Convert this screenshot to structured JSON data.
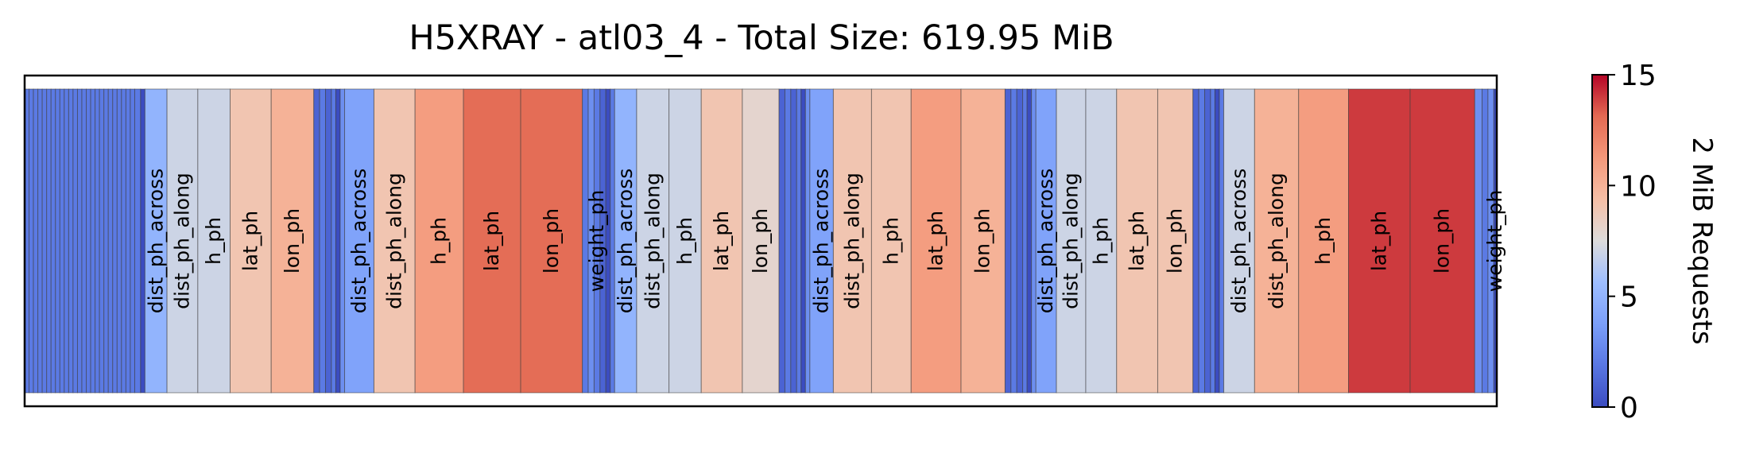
{
  "chart_data": {
    "type": "heatmap",
    "title": "H5XRAY - atl03_4 - Total Size: 619.95 MiB",
    "colorbar": {
      "label": "2 MiB Requests",
      "range": [
        0,
        15
      ],
      "ticks": [
        "0",
        "5",
        "10",
        "15"
      ],
      "colormap": "coolwarm",
      "placement": "right"
    },
    "segments": [
      {
        "label": "",
        "size": 0.003,
        "value": 2
      },
      {
        "label": "",
        "size": 0.003,
        "value": 2
      },
      {
        "label": "",
        "size": 0.003,
        "value": 2
      },
      {
        "label": "",
        "size": 0.003,
        "value": 2
      },
      {
        "label": "",
        "size": 0.003,
        "value": 2
      },
      {
        "label": "",
        "size": 0.003,
        "value": 2
      },
      {
        "label": "",
        "size": 0.003,
        "value": 2
      },
      {
        "label": "",
        "size": 0.003,
        "value": 2
      },
      {
        "label": "",
        "size": 0.003,
        "value": 2
      },
      {
        "label": "",
        "size": 0.003,
        "value": 2
      },
      {
        "label": "",
        "size": 0.003,
        "value": 2
      },
      {
        "label": "",
        "size": 0.003,
        "value": 2
      },
      {
        "label": "",
        "size": 0.003,
        "value": 2
      },
      {
        "label": "",
        "size": 0.003,
        "value": 2
      },
      {
        "label": "",
        "size": 0.003,
        "value": 2
      },
      {
        "label": "",
        "size": 0.003,
        "value": 2
      },
      {
        "label": "",
        "size": 0.003,
        "value": 2
      },
      {
        "label": "",
        "size": 0.003,
        "value": 2
      },
      {
        "label": "",
        "size": 0.003,
        "value": 2
      },
      {
        "label": "",
        "size": 0.003,
        "value": 2
      },
      {
        "label": "",
        "size": 0.003,
        "value": 2
      },
      {
        "label": "",
        "size": 0.003,
        "value": 2
      },
      {
        "label": "",
        "size": 0.003,
        "value": 2
      },
      {
        "label": "",
        "size": 0.003,
        "value": 2
      },
      {
        "label": "",
        "size": 0.003,
        "value": 2
      },
      {
        "label": "",
        "size": 0.004,
        "value": 2
      },
      {
        "label": "",
        "size": 0.003,
        "value": 0
      },
      {
        "label": "dist_ph_across",
        "size": 0.015,
        "value": 5
      },
      {
        "label": "dist_ph_along",
        "size": 0.021,
        "value": 7
      },
      {
        "label": "h_ph",
        "size": 0.022,
        "value": 7
      },
      {
        "label": "lat_ph",
        "size": 0.028,
        "value": 9
      },
      {
        "label": "lon_ph",
        "size": 0.029,
        "value": 10
      },
      {
        "label": "",
        "size": 0.004,
        "value": 1
      },
      {
        "label": "",
        "size": 0.004,
        "value": 2
      },
      {
        "label": "",
        "size": 0.004,
        "value": 1
      },
      {
        "label": "",
        "size": 0.003,
        "value": 2
      },
      {
        "label": "",
        "size": 0.003,
        "value": 0
      },
      {
        "label": "",
        "size": 0.003,
        "value": 3
      },
      {
        "label": "dist_ph_across",
        "size": 0.02,
        "value": 4
      },
      {
        "label": "dist_ph_along",
        "size": 0.028,
        "value": 9
      },
      {
        "label": "h_ph",
        "size": 0.033,
        "value": 11
      },
      {
        "label": "lat_ph",
        "size": 0.039,
        "value": 13
      },
      {
        "label": "lon_ph",
        "size": 0.042,
        "value": 13
      },
      {
        "label": "",
        "size": 0.004,
        "value": 2
      },
      {
        "label": "",
        "size": 0.004,
        "value": 3
      },
      {
        "label": "weight_ph",
        "size": 0.004,
        "value": 2
      },
      {
        "label": "",
        "size": 0.004,
        "value": 1
      },
      {
        "label": "",
        "size": 0.003,
        "value": 0
      },
      {
        "label": "",
        "size": 0.003,
        "value": 2
      },
      {
        "label": "dist_ph_across",
        "size": 0.015,
        "value": 5
      },
      {
        "label": "dist_ph_along",
        "size": 0.022,
        "value": 7
      },
      {
        "label": "h_ph",
        "size": 0.022,
        "value": 7
      },
      {
        "label": "lat_ph",
        "size": 0.028,
        "value": 9
      },
      {
        "label": "lon_ph",
        "size": 0.025,
        "value": 8
      },
      {
        "label": "",
        "size": 0.004,
        "value": 1
      },
      {
        "label": "",
        "size": 0.004,
        "value": 2
      },
      {
        "label": "",
        "size": 0.004,
        "value": 1
      },
      {
        "label": "",
        "size": 0.003,
        "value": 2
      },
      {
        "label": "",
        "size": 0.003,
        "value": 0
      },
      {
        "label": "",
        "size": 0.003,
        "value": 3
      },
      {
        "label": "dist_ph_across",
        "size": 0.016,
        "value": 4
      },
      {
        "label": "dist_ph_along",
        "size": 0.026,
        "value": 9
      },
      {
        "label": "h_ph",
        "size": 0.027,
        "value": 9
      },
      {
        "label": "lat_ph",
        "size": 0.034,
        "value": 11
      },
      {
        "label": "lon_ph",
        "size": 0.03,
        "value": 10
      },
      {
        "label": "",
        "size": 0.004,
        "value": 1
      },
      {
        "label": "",
        "size": 0.004,
        "value": 2
      },
      {
        "label": "",
        "size": 0.004,
        "value": 1
      },
      {
        "label": "",
        "size": 0.003,
        "value": 2
      },
      {
        "label": "",
        "size": 0.003,
        "value": 0
      },
      {
        "label": "",
        "size": 0.003,
        "value": 3
      },
      {
        "label": "dist_ph_across",
        "size": 0.014,
        "value": 4
      },
      {
        "label": "dist_ph_along",
        "size": 0.02,
        "value": 7
      },
      {
        "label": "h_ph",
        "size": 0.021,
        "value": 7
      },
      {
        "label": "lat_ph",
        "size": 0.028,
        "value": 9
      },
      {
        "label": "lon_ph",
        "size": 0.024,
        "value": 9
      },
      {
        "label": "",
        "size": 0.004,
        "value": 1
      },
      {
        "label": "",
        "size": 0.004,
        "value": 2
      },
      {
        "label": "",
        "size": 0.004,
        "value": 1
      },
      {
        "label": "",
        "size": 0.003,
        "value": 2
      },
      {
        "label": "",
        "size": 0.003,
        "value": 0
      },
      {
        "label": "",
        "size": 0.003,
        "value": 2
      },
      {
        "label": "dist_ph_across",
        "size": 0.021,
        "value": 7
      },
      {
        "label": "dist_ph_along",
        "size": 0.03,
        "value": 10
      },
      {
        "label": "h_ph",
        "size": 0.034,
        "value": 11
      },
      {
        "label": "lat_ph",
        "size": 0.042,
        "value": 14
      },
      {
        "label": "lon_ph",
        "size": 0.044,
        "value": 14
      },
      {
        "label": "",
        "size": 0.005,
        "value": 3
      },
      {
        "label": "",
        "size": 0.004,
        "value": 2
      },
      {
        "label": "",
        "size": 0.004,
        "value": 3
      },
      {
        "label": "weight_ph",
        "size": 0.002,
        "value": 0
      }
    ]
  }
}
